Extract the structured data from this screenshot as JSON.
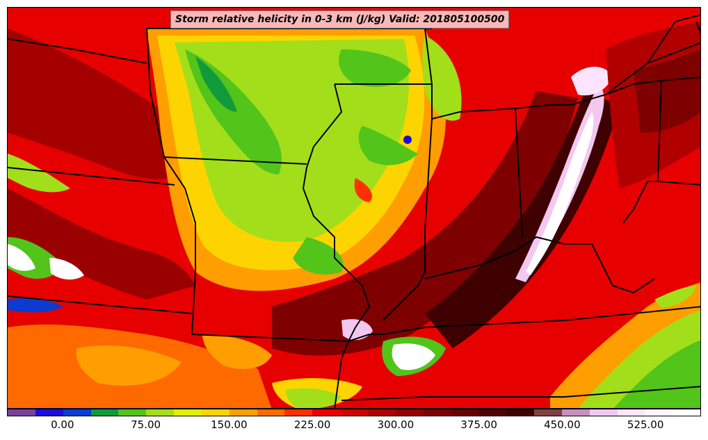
{
  "title": "Storm relative helicity in 0-3 km (J/kg) Valid: 201805100500",
  "colorbar": {
    "colors": [
      "#7a3f9a",
      "#1a0ddc",
      "#0b3bd0",
      "#119a3c",
      "#52c41a",
      "#a3de1a",
      "#e2f000",
      "#fed400",
      "#ff9e00",
      "#ff6a00",
      "#ff3000",
      "#e80000",
      "#cf0000",
      "#b10000",
      "#960000",
      "#7e0000",
      "#680000",
      "#4f0000",
      "#3e0000",
      "#804040",
      "#c88fbf",
      "#f2c8f0",
      "#ffe4ff",
      "#fff4ff",
      "#ffffff"
    ],
    "tick_labels": [
      "0.00",
      "75.00",
      "150.00",
      "225.00",
      "300.00",
      "375.00",
      "450.00",
      "525.00"
    ],
    "tick_values": [
      0,
      75,
      150,
      225,
      300,
      375,
      450,
      525
    ],
    "range": [
      -50,
      575
    ]
  },
  "map": {
    "background_color": "#e80000",
    "border_color": "#000000"
  }
}
